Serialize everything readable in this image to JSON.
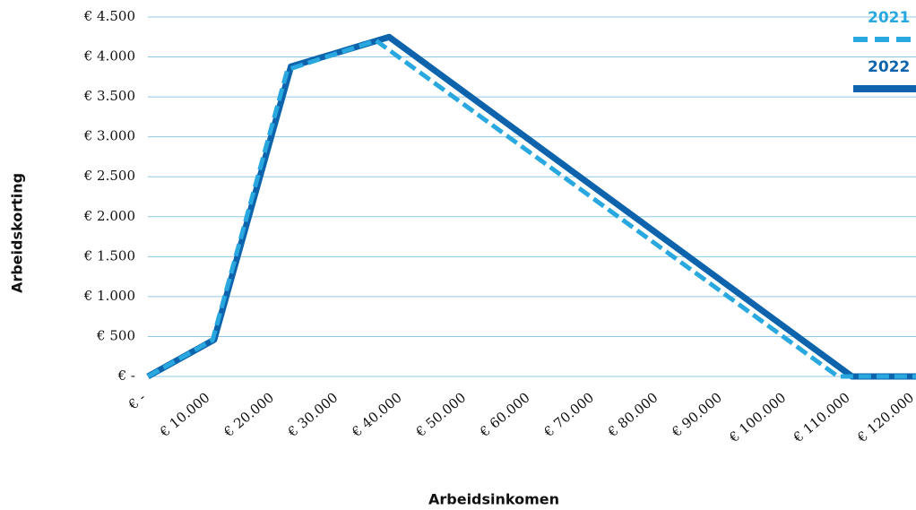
{
  "chart_data": {
    "type": "line",
    "xlabel": "Arbeidsinkomen",
    "ylabel": "Arbeidskorting",
    "xlim": [
      0,
      120000
    ],
    "ylim": [
      0,
      4500
    ],
    "xticks": [
      {
        "value": 0,
        "label": "€ -"
      },
      {
        "value": 10000,
        "label": "€ 10.000"
      },
      {
        "value": 20000,
        "label": "€ 20.000"
      },
      {
        "value": 30000,
        "label": "€ 30.000"
      },
      {
        "value": 40000,
        "label": "€ 40.000"
      },
      {
        "value": 50000,
        "label": "€ 50.000"
      },
      {
        "value": 60000,
        "label": "€ 60.000"
      },
      {
        "value": 70000,
        "label": "€ 70.000"
      },
      {
        "value": 80000,
        "label": "€ 80.000"
      },
      {
        "value": 90000,
        "label": "€ 90.000"
      },
      {
        "value": 100000,
        "label": "€ 100.000"
      },
      {
        "value": 110000,
        "label": "€ 110.000"
      },
      {
        "value": 120000,
        "label": "€ 120.000"
      }
    ],
    "yticks": [
      {
        "value": 0,
        "label": "€ -"
      },
      {
        "value": 500,
        "label": "€ 500"
      },
      {
        "value": 1000,
        "label": "€ 1.000"
      },
      {
        "value": 1500,
        "label": "€ 1.500"
      },
      {
        "value": 2000,
        "label": "€ 2.000"
      },
      {
        "value": 2500,
        "label": "€ 2.500"
      },
      {
        "value": 3000,
        "label": "€ 3.000"
      },
      {
        "value": 3500,
        "label": "€ 3.500"
      },
      {
        "value": 4000,
        "label": "€ 4.000"
      },
      {
        "value": 4500,
        "label": "€ 4.500"
      }
    ],
    "grid": true,
    "legend": "top-right",
    "series": [
      {
        "name": "2021",
        "color": "#29a8e0",
        "dashed": true,
        "x": [
          0,
          10100,
          21800,
          35650,
          107800,
          120000
        ],
        "values": [
          0,
          455,
          3840,
          4205,
          0,
          0
        ]
      },
      {
        "name": "2022",
        "color": "#0d64ad",
        "dashed": false,
        "x": [
          0,
          10350,
          22350,
          37700,
          110000,
          120000
        ],
        "values": [
          0,
          460,
          3880,
          4250,
          0,
          0
        ]
      }
    ]
  }
}
